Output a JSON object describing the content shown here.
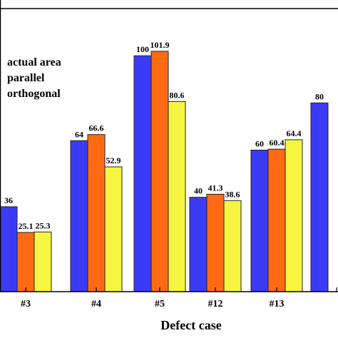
{
  "chart_data": {
    "type": "bar",
    "xlabel": "Defect case",
    "ylabel": "",
    "categories": [
      "#3",
      "#4",
      "#5",
      "#12",
      "#13",
      ""
    ],
    "series": [
      {
        "name": "actual area",
        "color": "#3b3bf5",
        "values": [
          36,
          64,
          100,
          40,
          60,
          80
        ],
        "labels": [
          "36",
          "64",
          "100",
          "40",
          "60",
          "80"
        ]
      },
      {
        "name": "parallel",
        "color": "#ff6a13",
        "values": [
          25.1,
          66.6,
          101.9,
          41.3,
          60.4,
          null
        ],
        "labels": [
          "25.1",
          "66.6",
          "101.9",
          "41.3",
          "60.4",
          ""
        ]
      },
      {
        "name": "orthogonal",
        "color": "#f5f542",
        "values": [
          25.3,
          52.9,
          80.6,
          38.6,
          64.4,
          null
        ],
        "labels": [
          "25.3",
          "52.9",
          "80.6",
          "38.6",
          "64.4",
          ""
        ]
      }
    ],
    "ylim": [
      0,
      120
    ],
    "legend_position": "top-left",
    "grid": false
  }
}
